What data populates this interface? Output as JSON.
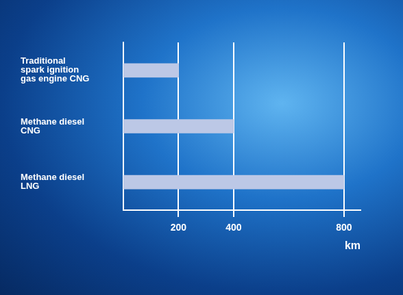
{
  "chart_data": {
    "type": "bar",
    "orientation": "horizontal",
    "categories": [
      "Traditional spark ignition gas engine CNG",
      "Methane diesel CNG",
      "Methane diesel LNG"
    ],
    "values": [
      200,
      400,
      800
    ],
    "color": "#bcc8e6",
    "x_label": "km",
    "xlim": [
      0,
      860
    ],
    "xticks": [
      200,
      400,
      800
    ],
    "grid": true
  }
}
